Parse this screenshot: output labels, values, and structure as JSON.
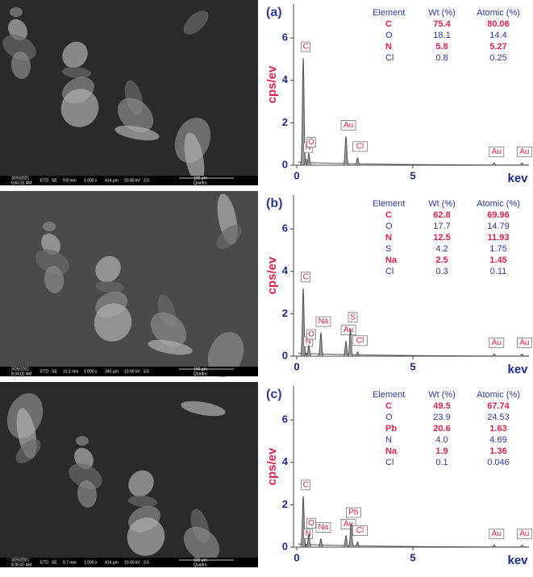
{
  "sem_images": [
    {
      "date": "3/25/2021",
      "time": "6:43:31 AM",
      "det": "ETD",
      "mode": "SE",
      "wd": "9.8 mm",
      "mag": "1 000 x",
      "hfw": "414 µm",
      "hv": "20.00 kV",
      "spot": "3.0",
      "scale": "100 µm",
      "brand": "Quattro"
    },
    {
      "date": "3/25/2021",
      "time": "8:34:02 AM",
      "det": "ETD",
      "mode": "SE",
      "wd": "10.1 mm",
      "mag": "1 000 x",
      "hfw": "345 µm",
      "hv": "10.00 kV",
      "spot": "3.5",
      "scale": "100 µm",
      "brand": "Quattro"
    },
    {
      "date": "3/25/2021",
      "time": "8:35:47 AM",
      "det": "ETD",
      "mode": "SE",
      "wd": "9.7 mm",
      "mag": "1 000 x",
      "hfw": "414 µm",
      "hv": "10.00 kV",
      "spot": "3.5",
      "scale": "100 µm",
      "brand": "Quattro"
    }
  ],
  "chart_data": [
    {
      "type": "spectrum",
      "title": "(a)",
      "y_label": "cps/ev",
      "x_label": "kev",
      "xlim": [
        0,
        10
      ],
      "ylim": [
        0,
        7.6
      ],
      "xticks": [
        0,
        5
      ],
      "yticks": [
        0,
        2,
        4,
        6
      ],
      "color": "#555555",
      "peaks": [
        {
          "label": "C",
          "x": 0.28,
          "y": 5.05
        },
        {
          "label": "N",
          "x": 0.39,
          "y": 0.3
        },
        {
          "label": "O",
          "x": 0.52,
          "y": 0.55
        },
        {
          "label": "Au",
          "x": 2.12,
          "y": 1.35
        },
        {
          "label": "Cl",
          "x": 2.62,
          "y": 0.35
        },
        {
          "label": "Au",
          "x": 8.5,
          "y": 0.1
        },
        {
          "label": "Au",
          "x": 9.7,
          "y": 0.1
        }
      ],
      "table": {
        "header": [
          "Element",
          "Wt (%)",
          "Atomic (%)"
        ],
        "rows": [
          [
            "C",
            "75.4",
            "80.06"
          ],
          [
            "O",
            "18.1",
            "14.4"
          ],
          [
            "N",
            "5.8",
            "5.27"
          ],
          [
            "Cl",
            "0.8",
            "0.25"
          ]
        ],
        "row_colors": [
          "#e0204a",
          "#2a3a9a",
          "#e0204a",
          "#2a3a9a"
        ]
      }
    },
    {
      "type": "spectrum",
      "title": "(b)",
      "y_label": "cps/ev",
      "x_label": "kev",
      "xlim": [
        0,
        10
      ],
      "ylim": [
        0,
        7.6
      ],
      "xticks": [
        0,
        5
      ],
      "yticks": [
        0,
        2,
        4,
        6
      ],
      "color": "#555555",
      "peaks": [
        {
          "label": "C",
          "x": 0.28,
          "y": 3.2
        },
        {
          "label": "N",
          "x": 0.39,
          "y": 0.15
        },
        {
          "label": "O",
          "x": 0.52,
          "y": 0.5
        },
        {
          "label": "Na",
          "x": 1.04,
          "y": 1.1
        },
        {
          "label": "Au",
          "x": 2.12,
          "y": 0.7
        },
        {
          "label": "S",
          "x": 2.31,
          "y": 1.3
        },
        {
          "label": "Cl",
          "x": 2.62,
          "y": 0.2
        },
        {
          "label": "Au",
          "x": 8.5,
          "y": 0.1
        },
        {
          "label": "Au",
          "x": 9.7,
          "y": 0.1
        }
      ],
      "table": {
        "header": [
          "Element",
          "Wt (%)",
          "Atomic (%)"
        ],
        "rows": [
          [
            "C",
            "62.8",
            "69.96"
          ],
          [
            "O",
            "17.7",
            "14.79"
          ],
          [
            "N",
            "12.5",
            "11.93"
          ],
          [
            "S",
            "4.2",
            "1.75"
          ],
          [
            "Na",
            "2.5",
            "1.45"
          ],
          [
            "Cl",
            "0.3",
            "0.11"
          ]
        ],
        "row_colors": [
          "#e0204a",
          "#2a3a9a",
          "#e0204a",
          "#2a3a9a",
          "#e0204a",
          "#2a3a9a"
        ]
      }
    },
    {
      "type": "spectrum",
      "title": "(c)",
      "y_label": "cps/ev",
      "x_label": "kev",
      "xlim": [
        0,
        10
      ],
      "ylim": [
        0,
        7.6
      ],
      "xticks": [
        0,
        5
      ],
      "yticks": [
        0,
        2,
        4,
        6
      ],
      "color": "#555555",
      "peaks": [
        {
          "label": "C",
          "x": 0.28,
          "y": 2.4
        },
        {
          "label": "N",
          "x": 0.39,
          "y": 0.1
        },
        {
          "label": "O",
          "x": 0.52,
          "y": 0.6
        },
        {
          "label": "Na",
          "x": 1.04,
          "y": 0.4
        },
        {
          "label": "Au",
          "x": 2.12,
          "y": 0.55
        },
        {
          "label": "Pb",
          "x": 2.34,
          "y": 1.1
        },
        {
          "label": "Cl",
          "x": 2.62,
          "y": 0.25
        },
        {
          "label": "Au",
          "x": 8.5,
          "y": 0.1
        },
        {
          "label": "Au",
          "x": 9.7,
          "y": 0.1
        }
      ],
      "table": {
        "header": [
          "Element",
          "Wt (%)",
          "Atomic (%)"
        ],
        "rows": [
          [
            "C",
            "49.5",
            "67.74"
          ],
          [
            "O",
            "23.9",
            "24.53"
          ],
          [
            "Pb",
            "20.6",
            "1.63"
          ],
          [
            "N",
            "4.0",
            "4.69"
          ],
          [
            "Na",
            "1.9",
            "1.36"
          ],
          [
            "Cl",
            "0.1",
            "0.046"
          ]
        ],
        "row_colors": [
          "#e0204a",
          "#2a3a9a",
          "#e0204a",
          "#2a3a9a",
          "#e0204a",
          "#2a3a9a"
        ]
      }
    }
  ]
}
